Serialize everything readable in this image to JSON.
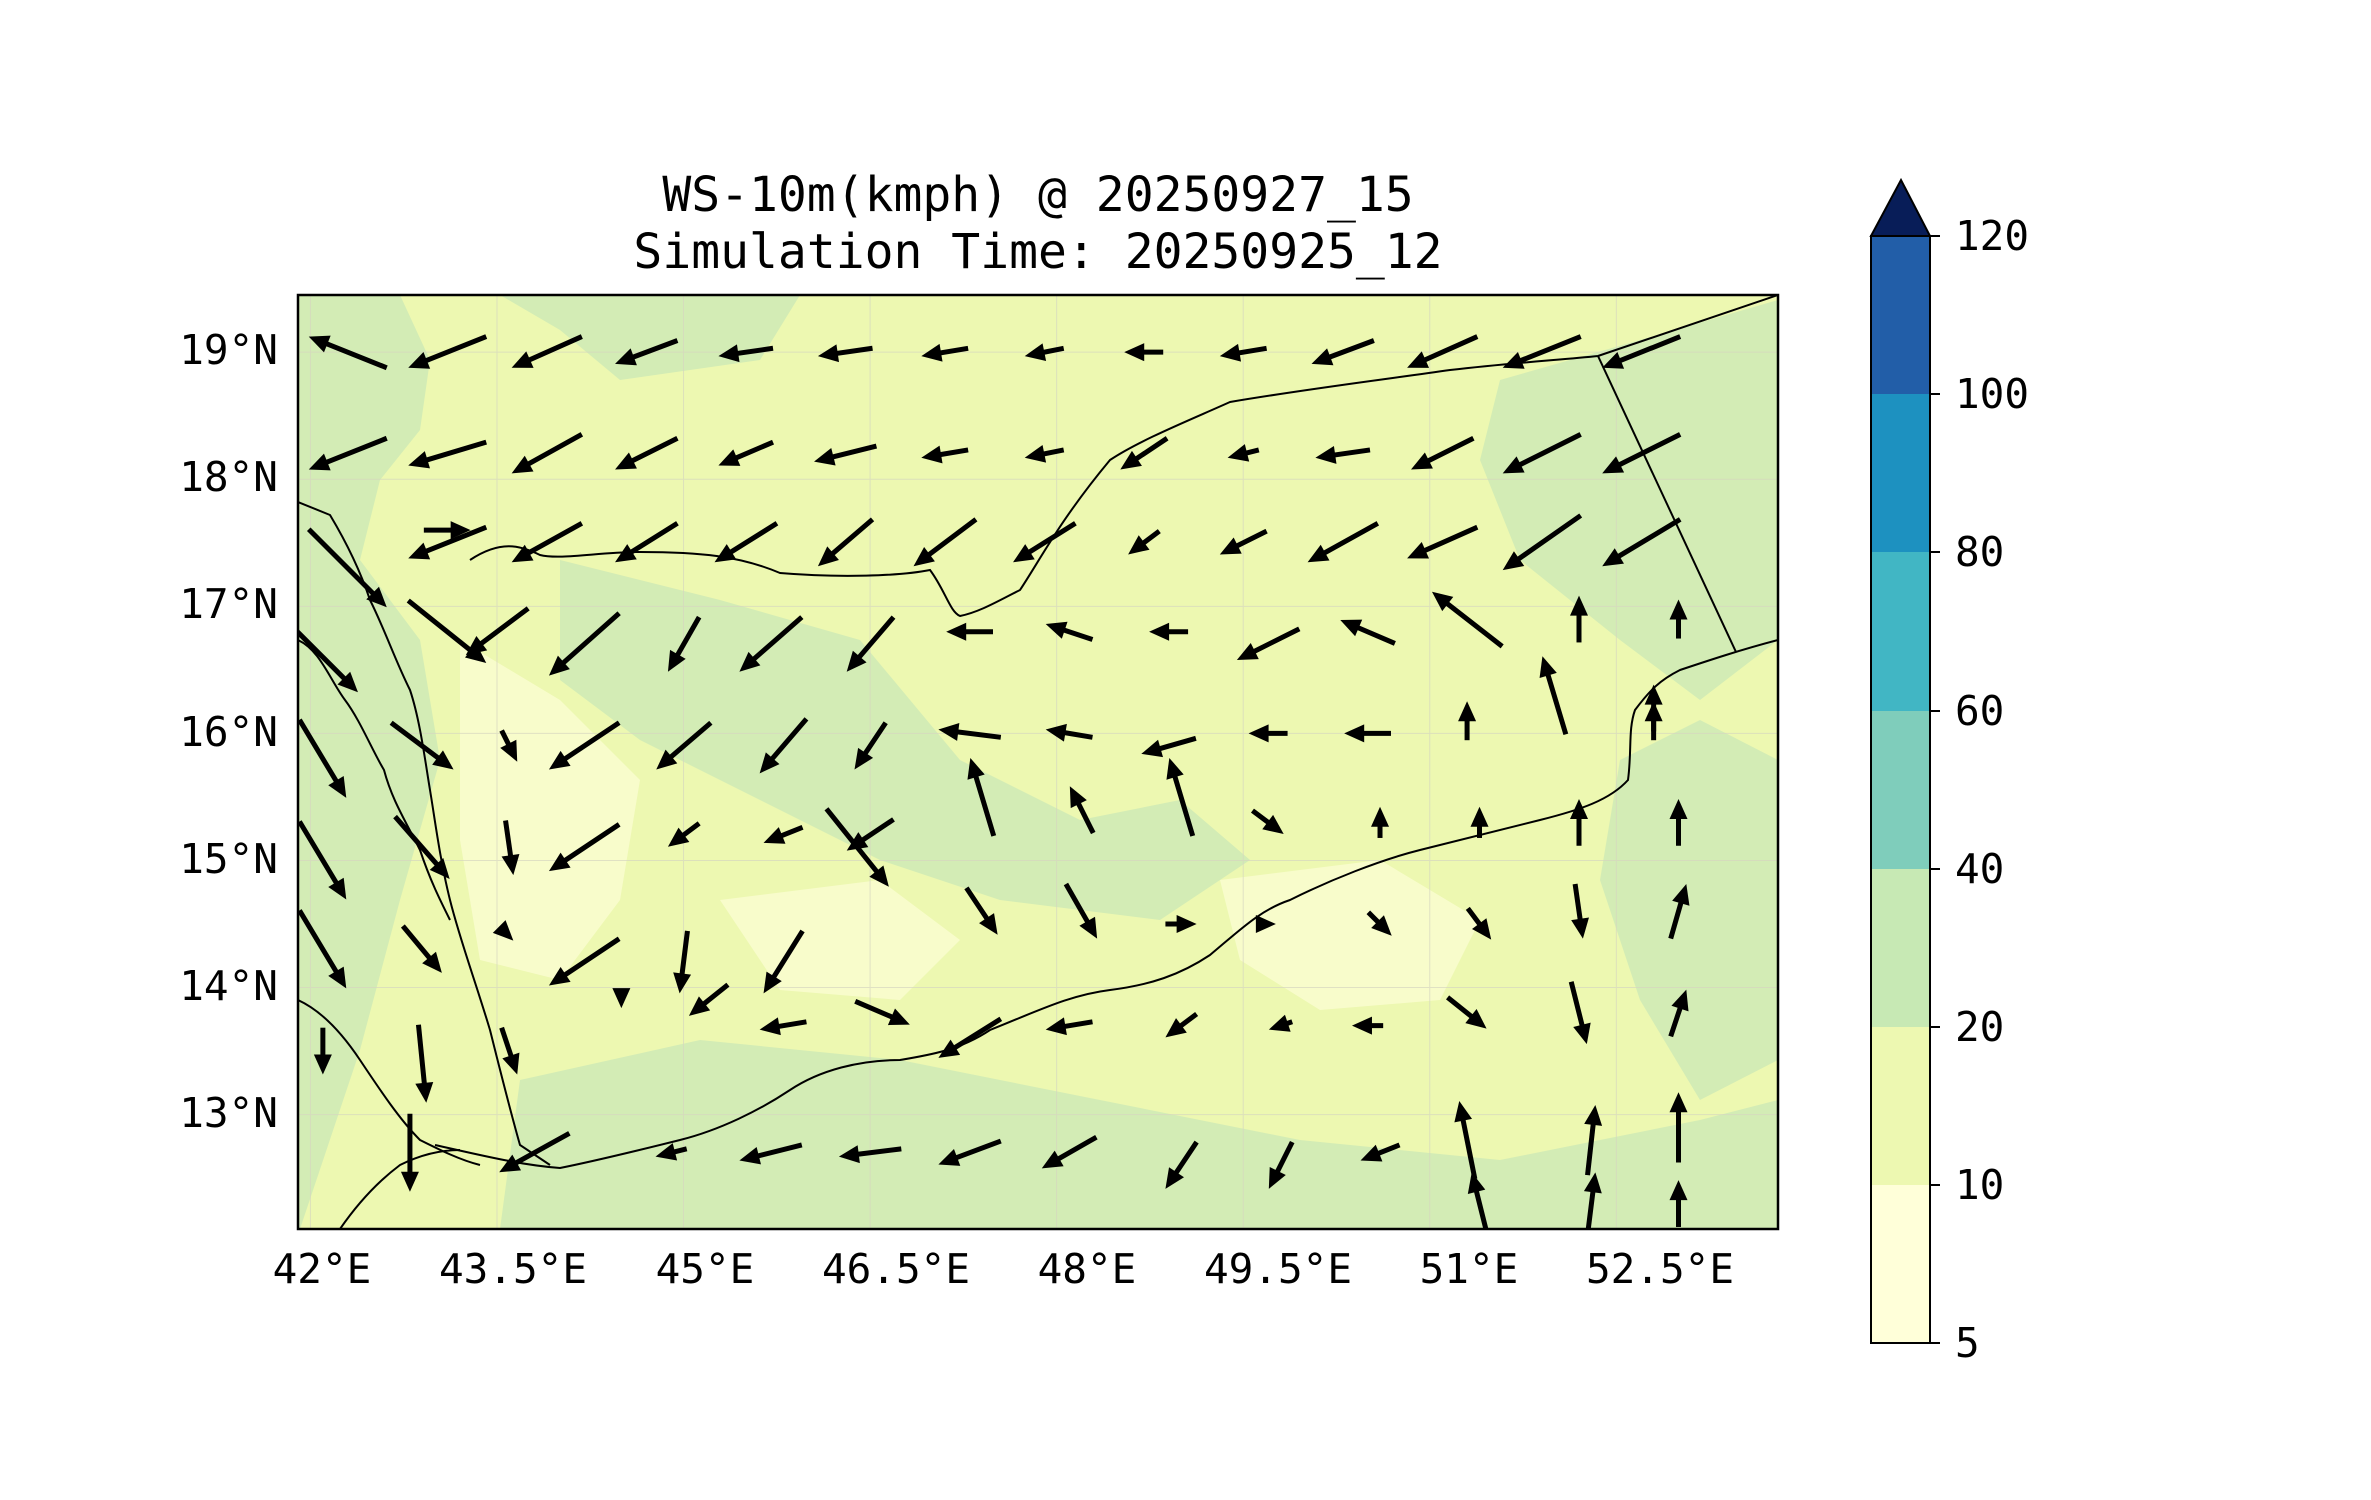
{
  "title": {
    "line1": "WS-10m(kmph) @ 20250927_15",
    "line2": "Simulation Time: 20250925_12"
  },
  "axes": {
    "x_ticks": [
      "42°E",
      "43.5°E",
      "45°E",
      "46.5°E",
      "48°E",
      "49.5°E",
      "51°E",
      "52.5°E"
    ],
    "y_ticks": [
      "19°N",
      "18°N",
      "17°N",
      "16°N",
      "15°N",
      "14°N",
      "13°N"
    ],
    "x_values": [
      42,
      43.5,
      45,
      46.5,
      48,
      49.5,
      51,
      52.5
    ],
    "y_values": [
      19,
      18,
      17,
      16,
      15,
      14,
      13
    ],
    "lon_range": [
      41.9,
      53.8
    ],
    "lat_range": [
      12.1,
      19.45
    ]
  },
  "colorbar": {
    "ticks": [
      "5",
      "10",
      "20",
      "40",
      "60",
      "80",
      "100",
      "120"
    ],
    "levels": [
      5,
      10,
      20,
      40,
      60,
      80,
      100,
      120
    ],
    "colors": [
      "#ffffd9",
      "#edf8b1",
      "#c7e9b4",
      "#7fcdbb",
      "#41b6c4",
      "#1d91c0",
      "#225ea8",
      "#0c2c84"
    ],
    "extend": "max",
    "extend_color": "#081d58"
  },
  "map": {
    "region": "Yemen / southern Arabian Peninsula",
    "field_colors": {
      "low": "#f7fbc8",
      "mid": "#edf8b1",
      "high": "#d3ecb5"
    },
    "gridlines": true
  },
  "chart_data": {
    "type": "quiver",
    "quantity": "10 m wind speed (kmph)",
    "extent": {
      "lon": [
        41.9,
        53.8
      ],
      "lat": [
        12.1,
        19.45
      ]
    },
    "vectors": [
      {
        "lon": 42.3,
        "lat": 19.0,
        "u": -1,
        "v": 0.4
      },
      {
        "lon": 43.1,
        "lat": 19.0,
        "u": -1,
        "v": -0.4
      },
      {
        "lon": 43.9,
        "lat": 19.0,
        "u": -0.9,
        "v": -0.4
      },
      {
        "lon": 44.7,
        "lat": 19.0,
        "u": -0.8,
        "v": -0.3
      },
      {
        "lon": 45.5,
        "lat": 19.0,
        "u": -0.7,
        "v": -0.1
      },
      {
        "lon": 46.3,
        "lat": 19.0,
        "u": -0.7,
        "v": -0.1
      },
      {
        "lon": 47.1,
        "lat": 19.0,
        "u": -0.6,
        "v": -0.1
      },
      {
        "lon": 47.9,
        "lat": 19.0,
        "u": -0.5,
        "v": -0.1
      },
      {
        "lon": 48.7,
        "lat": 19.0,
        "u": -0.5,
        "v": 0
      },
      {
        "lon": 49.5,
        "lat": 19.0,
        "u": -0.6,
        "v": -0.1
      },
      {
        "lon": 50.3,
        "lat": 19.0,
        "u": -0.8,
        "v": -0.3
      },
      {
        "lon": 51.1,
        "lat": 19.0,
        "u": -0.9,
        "v": -0.4
      },
      {
        "lon": 51.9,
        "lat": 19.0,
        "u": -1,
        "v": -0.4
      },
      {
        "lon": 52.7,
        "lat": 19.0,
        "u": -1,
        "v": -0.4
      },
      {
        "lon": 42.3,
        "lat": 18.2,
        "u": -1,
        "v": -0.4
      },
      {
        "lon": 43.1,
        "lat": 18.2,
        "u": -1,
        "v": -0.3
      },
      {
        "lon": 43.9,
        "lat": 18.2,
        "u": -0.9,
        "v": -0.5
      },
      {
        "lon": 44.7,
        "lat": 18.2,
        "u": -0.8,
        "v": -0.4
      },
      {
        "lon": 45.5,
        "lat": 18.2,
        "u": -0.7,
        "v": -0.3
      },
      {
        "lon": 46.3,
        "lat": 18.2,
        "u": -0.8,
        "v": -0.2
      },
      {
        "lon": 47.1,
        "lat": 18.2,
        "u": -0.6,
        "v": -0.1
      },
      {
        "lon": 47.9,
        "lat": 18.2,
        "u": -0.5,
        "v": -0.1
      },
      {
        "lon": 48.7,
        "lat": 18.2,
        "u": -0.6,
        "v": -0.4
      },
      {
        "lon": 49.5,
        "lat": 18.2,
        "u": -0.4,
        "v": -0.1
      },
      {
        "lon": 50.3,
        "lat": 18.2,
        "u": -0.7,
        "v": -0.1
      },
      {
        "lon": 51.1,
        "lat": 18.2,
        "u": -0.8,
        "v": -0.4
      },
      {
        "lon": 51.9,
        "lat": 18.2,
        "u": -1,
        "v": -0.5
      },
      {
        "lon": 52.7,
        "lat": 18.2,
        "u": -1,
        "v": -0.5
      },
      {
        "lon": 43.1,
        "lat": 17.6,
        "u": 0.6,
        "v": 0
      },
      {
        "lon": 43.1,
        "lat": 17.5,
        "u": -1,
        "v": -0.4
      },
      {
        "lon": 43.9,
        "lat": 17.5,
        "u": -0.9,
        "v": -0.5
      },
      {
        "lon": 44.7,
        "lat": 17.5,
        "u": -0.8,
        "v": -0.5
      },
      {
        "lon": 45.5,
        "lat": 17.5,
        "u": -0.8,
        "v": -0.5
      },
      {
        "lon": 46.3,
        "lat": 17.5,
        "u": -0.7,
        "v": -0.6
      },
      {
        "lon": 47.1,
        "lat": 17.5,
        "u": -0.8,
        "v": -0.6
      },
      {
        "lon": 47.9,
        "lat": 17.5,
        "u": -0.8,
        "v": -0.5
      },
      {
        "lon": 48.7,
        "lat": 17.5,
        "u": -0.4,
        "v": -0.3
      },
      {
        "lon": 49.5,
        "lat": 17.5,
        "u": -0.6,
        "v": -0.3
      },
      {
        "lon": 50.3,
        "lat": 17.5,
        "u": -0.9,
        "v": -0.5
      },
      {
        "lon": 51.1,
        "lat": 17.5,
        "u": -0.9,
        "v": -0.4
      },
      {
        "lon": 51.9,
        "lat": 17.5,
        "u": -1,
        "v": -0.7
      },
      {
        "lon": 52.7,
        "lat": 17.5,
        "u": -1,
        "v": -0.6
      },
      {
        "lon": 42.3,
        "lat": 17.3,
        "u": 1,
        "v": -1
      },
      {
        "lon": 43.1,
        "lat": 16.8,
        "u": 1,
        "v": -0.8
      },
      {
        "lon": 43.5,
        "lat": 16.8,
        "u": -0.8,
        "v": -0.6
      },
      {
        "lon": 44.2,
        "lat": 16.7,
        "u": -0.9,
        "v": -0.8
      },
      {
        "lon": 45.0,
        "lat": 16.7,
        "u": -0.4,
        "v": -0.7
      },
      {
        "lon": 45.7,
        "lat": 16.7,
        "u": -0.8,
        "v": -0.7
      },
      {
        "lon": 46.5,
        "lat": 16.7,
        "u": -0.6,
        "v": -0.7
      },
      {
        "lon": 47.3,
        "lat": 16.8,
        "u": -0.6,
        "v": 0
      },
      {
        "lon": 48.1,
        "lat": 16.8,
        "u": -0.6,
        "v": 0.2
      },
      {
        "lon": 48.9,
        "lat": 16.8,
        "u": -0.5,
        "v": 0
      },
      {
        "lon": 49.7,
        "lat": 16.7,
        "u": -0.8,
        "v": -0.4
      },
      {
        "lon": 50.5,
        "lat": 16.8,
        "u": -0.7,
        "v": 0.3
      },
      {
        "lon": 51.3,
        "lat": 16.9,
        "u": -0.9,
        "v": 0.7
      },
      {
        "lon": 52.2,
        "lat": 16.9,
        "u": 0,
        "v": 0.6
      },
      {
        "lon": 53.0,
        "lat": 16.9,
        "u": 0,
        "v": 0.5
      },
      {
        "lon": 42.1,
        "lat": 16.6,
        "u": 0.9,
        "v": -0.9
      },
      {
        "lon": 52.0,
        "lat": 16.3,
        "u": -0.3,
        "v": 1
      },
      {
        "lon": 52.8,
        "lat": 16.2,
        "u": 0,
        "v": 0.6
      },
      {
        "lon": 42.1,
        "lat": 15.8,
        "u": 0.6,
        "v": -1
      },
      {
        "lon": 42.9,
        "lat": 15.9,
        "u": 0.8,
        "v": -0.6
      },
      {
        "lon": 43.6,
        "lat": 15.9,
        "u": 0.2,
        "v": -0.4
      },
      {
        "lon": 44.2,
        "lat": 15.9,
        "u": -0.9,
        "v": -0.6
      },
      {
        "lon": 45.0,
        "lat": 15.9,
        "u": -0.7,
        "v": -0.6
      },
      {
        "lon": 45.8,
        "lat": 15.9,
        "u": -0.6,
        "v": -0.7
      },
      {
        "lon": 46.5,
        "lat": 15.9,
        "u": -0.4,
        "v": -0.6
      },
      {
        "lon": 47.3,
        "lat": 16.0,
        "u": -0.8,
        "v": 0.1
      },
      {
        "lon": 48.1,
        "lat": 16.0,
        "u": -0.6,
        "v": 0.1
      },
      {
        "lon": 48.9,
        "lat": 15.9,
        "u": -0.7,
        "v": -0.2
      },
      {
        "lon": 49.7,
        "lat": 16.0,
        "u": -0.5,
        "v": 0
      },
      {
        "lon": 50.5,
        "lat": 16.0,
        "u": -0.6,
        "v": 0
      },
      {
        "lon": 51.3,
        "lat": 16.1,
        "u": 0,
        "v": 0.5
      },
      {
        "lon": 52.8,
        "lat": 16.1,
        "u": 0,
        "v": 0.5
      },
      {
        "lon": 42.1,
        "lat": 15.0,
        "u": 0.6,
        "v": -1
      },
      {
        "lon": 42.9,
        "lat": 15.1,
        "u": 0.7,
        "v": -0.8
      },
      {
        "lon": 43.6,
        "lat": 15.1,
        "u": 0.1,
        "v": -0.7
      },
      {
        "lon": 44.2,
        "lat": 15.1,
        "u": -0.9,
        "v": -0.6
      },
      {
        "lon": 45.0,
        "lat": 15.2,
        "u": -0.4,
        "v": -0.3
      },
      {
        "lon": 45.8,
        "lat": 15.2,
        "u": -0.5,
        "v": -0.2
      },
      {
        "lon": 46.4,
        "lat": 15.1,
        "u": 0.8,
        "v": -1
      },
      {
        "lon": 46.5,
        "lat": 15.2,
        "u": -0.6,
        "v": -0.4
      },
      {
        "lon": 47.4,
        "lat": 15.5,
        "u": -0.3,
        "v": 1
      },
      {
        "lon": 48.2,
        "lat": 15.4,
        "u": -0.3,
        "v": 0.6
      },
      {
        "lon": 49.0,
        "lat": 15.5,
        "u": -0.3,
        "v": 1
      },
      {
        "lon": 49.7,
        "lat": 15.3,
        "u": 0.4,
        "v": -0.3
      },
      {
        "lon": 50.6,
        "lat": 15.3,
        "u": 0,
        "v": 0.4
      },
      {
        "lon": 51.4,
        "lat": 15.3,
        "u": 0,
        "v": 0.4
      },
      {
        "lon": 52.2,
        "lat": 15.3,
        "u": 0,
        "v": 0.6
      },
      {
        "lon": 53.0,
        "lat": 15.3,
        "u": 0,
        "v": 0.6
      },
      {
        "lon": 42.1,
        "lat": 14.3,
        "u": 0.6,
        "v": -1
      },
      {
        "lon": 42.9,
        "lat": 14.3,
        "u": 0.5,
        "v": -0.6
      },
      {
        "lon": 43.6,
        "lat": 14.4,
        "u": 0.1,
        "v": -0.1
      },
      {
        "lon": 44.2,
        "lat": 14.2,
        "u": -0.9,
        "v": -0.6
      },
      {
        "lon": 45.0,
        "lat": 14.2,
        "u": -0.1,
        "v": -0.8
      },
      {
        "lon": 45.8,
        "lat": 14.2,
        "u": -0.5,
        "v": -0.8
      },
      {
        "lon": 47.4,
        "lat": 14.6,
        "u": 0.4,
        "v": -0.6
      },
      {
        "lon": 48.2,
        "lat": 14.6,
        "u": 0.4,
        "v": -0.7
      },
      {
        "lon": 49.0,
        "lat": 14.5,
        "u": 0.4,
        "v": 0
      },
      {
        "lon": 49.7,
        "lat": 14.5,
        "u": 0.2,
        "v": 0
      },
      {
        "lon": 50.6,
        "lat": 14.5,
        "u": 0.3,
        "v": -0.3
      },
      {
        "lon": 51.4,
        "lat": 14.5,
        "u": 0.3,
        "v": -0.4
      },
      {
        "lon": 52.2,
        "lat": 14.6,
        "u": 0.1,
        "v": -0.7
      },
      {
        "lon": 53.0,
        "lat": 14.6,
        "u": 0.2,
        "v": 0.7
      },
      {
        "lon": 42.1,
        "lat": 13.5,
        "u": 0,
        "v": -0.6
      },
      {
        "lon": 42.9,
        "lat": 13.4,
        "u": 0.1,
        "v": -1
      },
      {
        "lon": 43.6,
        "lat": 13.5,
        "u": 0.2,
        "v": -0.6
      },
      {
        "lon": 44.5,
        "lat": 13.9,
        "u": 0,
        "v": -0.2
      },
      {
        "lon": 45.2,
        "lat": 13.9,
        "u": -0.5,
        "v": -0.4
      },
      {
        "lon": 45.8,
        "lat": 13.7,
        "u": -0.6,
        "v": -0.1
      },
      {
        "lon": 46.6,
        "lat": 13.8,
        "u": 0.7,
        "v": -0.3
      },
      {
        "lon": 47.3,
        "lat": 13.6,
        "u": -0.8,
        "v": -0.5
      },
      {
        "lon": 48.1,
        "lat": 13.7,
        "u": -0.6,
        "v": -0.1
      },
      {
        "lon": 49.0,
        "lat": 13.7,
        "u": -0.4,
        "v": -0.3
      },
      {
        "lon": 49.8,
        "lat": 13.7,
        "u": -0.3,
        "v": -0.1
      },
      {
        "lon": 50.5,
        "lat": 13.7,
        "u": -0.4,
        "v": 0
      },
      {
        "lon": 51.3,
        "lat": 13.8,
        "u": 0.5,
        "v": -0.4
      },
      {
        "lon": 52.2,
        "lat": 13.8,
        "u": 0.2,
        "v": -0.8
      },
      {
        "lon": 53.0,
        "lat": 13.8,
        "u": 0.2,
        "v": 0.6
      },
      {
        "lon": 42.8,
        "lat": 12.7,
        "u": 0,
        "v": -1
      },
      {
        "lon": 43.8,
        "lat": 12.7,
        "u": -0.9,
        "v": -0.5
      },
      {
        "lon": 44.9,
        "lat": 12.7,
        "u": -0.4,
        "v": -0.1
      },
      {
        "lon": 45.7,
        "lat": 12.7,
        "u": -0.8,
        "v": -0.2
      },
      {
        "lon": 46.5,
        "lat": 12.7,
        "u": -0.8,
        "v": -0.1
      },
      {
        "lon": 47.3,
        "lat": 12.7,
        "u": -0.8,
        "v": -0.3
      },
      {
        "lon": 48.1,
        "lat": 12.7,
        "u": -0.7,
        "v": -0.4
      },
      {
        "lon": 49.0,
        "lat": 12.6,
        "u": -0.4,
        "v": -0.6
      },
      {
        "lon": 49.8,
        "lat": 12.6,
        "u": -0.3,
        "v": -0.6
      },
      {
        "lon": 50.6,
        "lat": 12.7,
        "u": -0.5,
        "v": -0.2
      },
      {
        "lon": 51.3,
        "lat": 12.8,
        "u": -0.2,
        "v": 1
      },
      {
        "lon": 52.3,
        "lat": 12.8,
        "u": 0.1,
        "v": 0.9
      },
      {
        "lon": 53.0,
        "lat": 12.9,
        "u": 0,
        "v": 0.9
      },
      {
        "lon": 53.0,
        "lat": 12.3,
        "u": 0,
        "v": 0.6
      },
      {
        "lon": 52.3,
        "lat": 12.3,
        "u": 0.1,
        "v": 0.8
      },
      {
        "lon": 51.4,
        "lat": 12.3,
        "u": -0.2,
        "v": 0.8
      }
    ]
  }
}
